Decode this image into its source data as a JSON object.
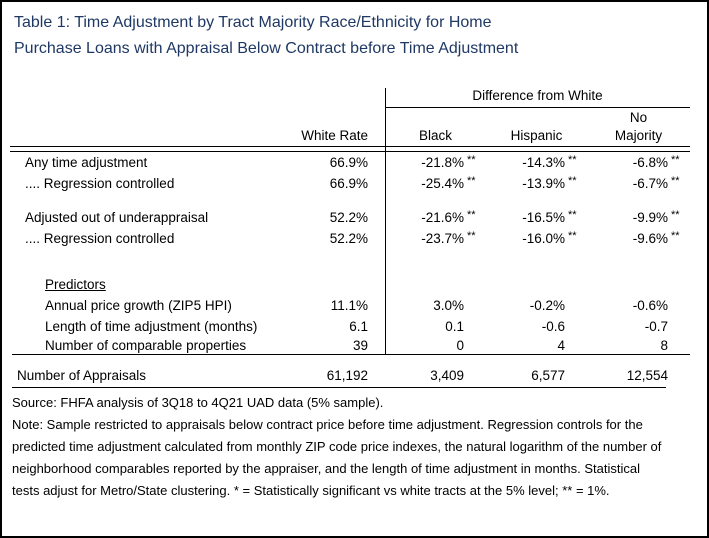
{
  "title": {
    "line1": "Table 1: Time Adjustment by Tract Majority Race/Ethnicity for Home",
    "line2": "Purchase Loans with Appraisal Below Contract before Time Adjustment"
  },
  "colors": {
    "title_text": "#1F3864",
    "body_text": "#000000",
    "rule_lines": "#000000",
    "background": "#FFFFFF"
  },
  "table": {
    "header": {
      "group": "Difference from White",
      "white_rate": "White Rate",
      "black": "Black",
      "hispanic": "Hispanic",
      "no_majority_top": "No",
      "no_majority_bottom": "Majority"
    },
    "rows": [
      {
        "label": "Any time adjustment",
        "white": "66.9%",
        "black": {
          "v": "-21.8%",
          "s": "**"
        },
        "hispanic": {
          "v": "-14.3%",
          "s": "**"
        },
        "no_majority": {
          "v": "-6.8%",
          "s": "**"
        }
      },
      {
        "label": ".... Regression controlled",
        "white": "66.9%",
        "black": {
          "v": "-25.4%",
          "s": "**"
        },
        "hispanic": {
          "v": "-13.9%",
          "s": "**"
        },
        "no_majority": {
          "v": "-6.7%",
          "s": "**"
        }
      },
      {
        "label": "Adjusted out of underappraisal",
        "white": "52.2%",
        "black": {
          "v": "-21.6%",
          "s": "**"
        },
        "hispanic": {
          "v": "-16.5%",
          "s": "**"
        },
        "no_majority": {
          "v": "-9.9%",
          "s": "**"
        }
      },
      {
        "label": ".... Regression controlled",
        "white": "52.2%",
        "black": {
          "v": "-23.7%",
          "s": "**"
        },
        "hispanic": {
          "v": "-16.0%",
          "s": "**"
        },
        "no_majority": {
          "v": "-9.6%",
          "s": "**"
        }
      },
      {
        "label": "Predictors"
      },
      {
        "label": "Annual price growth (ZIP5 HPI)",
        "white": "11.1%",
        "black": {
          "v": "3.0%",
          "s": ""
        },
        "hispanic": {
          "v": "-0.2%",
          "s": ""
        },
        "no_majority": {
          "v": "-0.6%",
          "s": ""
        }
      },
      {
        "label": "Length of time adjustment (months)",
        "white": "6.1",
        "black": {
          "v": "0.1",
          "s": ""
        },
        "hispanic": {
          "v": "-0.6",
          "s": ""
        },
        "no_majority": {
          "v": "-0.7",
          "s": ""
        }
      },
      {
        "label": "Number of comparable properties",
        "white": "39",
        "black": {
          "v": "0",
          "s": ""
        },
        "hispanic": {
          "v": "4",
          "s": ""
        },
        "no_majority": {
          "v": "8",
          "s": ""
        }
      },
      {
        "label": "Number of Appraisals",
        "white": "61,192",
        "black": {
          "v": "3,409",
          "s": ""
        },
        "hispanic": {
          "v": "6,577",
          "s": ""
        },
        "no_majority": {
          "v": "12,554",
          "s": ""
        }
      }
    ]
  },
  "footer": {
    "source": "Source: FHFA analysis of 3Q18 to 4Q21 UAD data (5% sample).",
    "note": "Note: Sample restricted to appraisals below contract price before time adjustment.  Regression controls for the predicted time adjustment calculated from monthly ZIP code price indexes,  the natural logarithm of the number of neighborhood comparables reported by the appraiser, and the length of time adjustment in months.  Statistical tests adjust for Metro/State clustering.  * = Statistically significant vs white tracts at the 5% level; ** = 1%."
  }
}
